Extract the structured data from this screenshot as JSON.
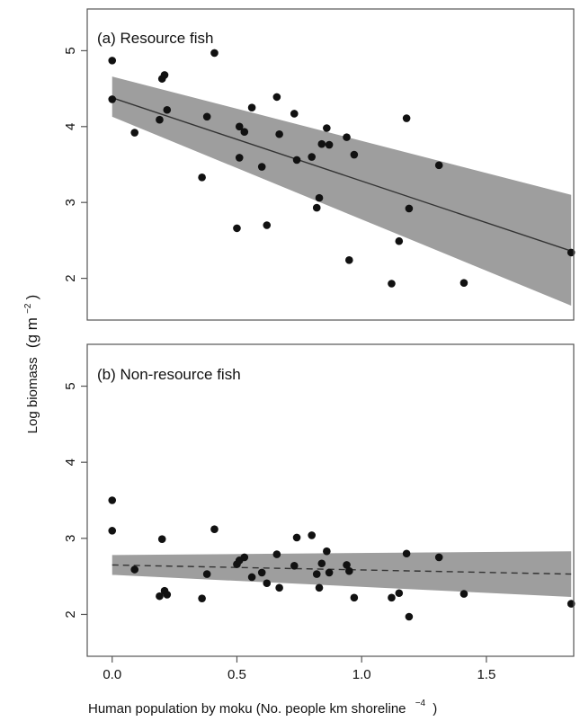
{
  "chart_data": [
    {
      "type": "scatter",
      "title": "(a) Resource fish",
      "ylim": [
        1.45,
        5.55
      ],
      "xlim": [
        -0.1,
        1.85
      ],
      "yticks": [
        "2",
        "3",
        "4",
        "5"
      ],
      "ytick_values": [
        2,
        3,
        4,
        5
      ],
      "grid": false,
      "points": [
        [
          0.0,
          4.87
        ],
        [
          0.0,
          4.36
        ],
        [
          0.09,
          3.92
        ],
        [
          0.19,
          4.09
        ],
        [
          0.2,
          4.63
        ],
        [
          0.21,
          4.68
        ],
        [
          0.22,
          4.22
        ],
        [
          0.36,
          3.33
        ],
        [
          0.38,
          4.13
        ],
        [
          0.41,
          4.97
        ],
        [
          0.5,
          2.66
        ],
        [
          0.51,
          3.59
        ],
        [
          0.51,
          4.0
        ],
        [
          0.53,
          3.93
        ],
        [
          0.56,
          4.25
        ],
        [
          0.6,
          3.47
        ],
        [
          0.62,
          2.7
        ],
        [
          0.66,
          4.39
        ],
        [
          0.67,
          3.9
        ],
        [
          0.73,
          4.17
        ],
        [
          0.74,
          3.56
        ],
        [
          0.8,
          3.6
        ],
        [
          0.82,
          2.93
        ],
        [
          0.83,
          3.06
        ],
        [
          0.84,
          3.77
        ],
        [
          0.86,
          3.98
        ],
        [
          0.87,
          3.76
        ],
        [
          0.94,
          3.86
        ],
        [
          0.95,
          2.24
        ],
        [
          0.97,
          3.63
        ],
        [
          1.12,
          1.93
        ],
        [
          1.15,
          2.49
        ],
        [
          1.18,
          4.11
        ],
        [
          1.19,
          2.92
        ],
        [
          1.31,
          3.49
        ],
        [
          1.41,
          1.94
        ],
        [
          1.84,
          2.34
        ]
      ],
      "fit": {
        "x": [
          0.0,
          1.84
        ],
        "y": [
          4.38,
          2.36
        ],
        "style": "solid"
      },
      "band": {
        "x": [
          0.0,
          1.84
        ],
        "upper": [
          4.66,
          3.1
        ],
        "lower": [
          4.13,
          1.64
        ]
      }
    },
    {
      "type": "scatter",
      "title": "(b) Non-resource fish",
      "ylim": [
        1.45,
        5.55
      ],
      "xlim": [
        -0.1,
        1.85
      ],
      "yticks": [
        "2",
        "3",
        "4",
        "5"
      ],
      "ytick_values": [
        2,
        3,
        4,
        5
      ],
      "xticks": [
        "0.0",
        "0.5",
        "1.0",
        "1.5"
      ],
      "xtick_values": [
        0.0,
        0.5,
        1.0,
        1.5
      ],
      "grid": false,
      "points": [
        [
          0.0,
          3.5
        ],
        [
          0.0,
          3.1
        ],
        [
          0.09,
          2.59
        ],
        [
          0.19,
          2.24
        ],
        [
          0.2,
          2.99
        ],
        [
          0.21,
          2.31
        ],
        [
          0.22,
          2.26
        ],
        [
          0.36,
          2.21
        ],
        [
          0.38,
          2.53
        ],
        [
          0.41,
          3.12
        ],
        [
          0.5,
          2.66
        ],
        [
          0.51,
          2.71
        ],
        [
          0.53,
          2.75
        ],
        [
          0.56,
          2.49
        ],
        [
          0.6,
          2.55
        ],
        [
          0.62,
          2.41
        ],
        [
          0.66,
          2.79
        ],
        [
          0.67,
          2.35
        ],
        [
          0.73,
          2.64
        ],
        [
          0.74,
          3.01
        ],
        [
          0.8,
          3.04
        ],
        [
          0.82,
          2.53
        ],
        [
          0.83,
          2.35
        ],
        [
          0.84,
          2.67
        ],
        [
          0.86,
          2.83
        ],
        [
          0.87,
          2.55
        ],
        [
          0.94,
          2.65
        ],
        [
          0.95,
          2.57
        ],
        [
          0.97,
          2.22
        ],
        [
          1.12,
          2.22
        ],
        [
          1.15,
          2.28
        ],
        [
          1.18,
          2.8
        ],
        [
          1.19,
          1.97
        ],
        [
          1.31,
          2.75
        ],
        [
          1.41,
          2.27
        ],
        [
          1.84,
          2.14
        ]
      ],
      "fit": {
        "x": [
          0.0,
          1.84
        ],
        "y": [
          2.65,
          2.53
        ],
        "style": "dashed"
      },
      "band": {
        "x": [
          0.0,
          1.84
        ],
        "upper": [
          2.78,
          2.83
        ],
        "lower": [
          2.52,
          2.23
        ]
      }
    }
  ],
  "ylabel_main": "Log biomass",
  "ylabel_unit_base": "(g m",
  "ylabel_unit_exp": "−2",
  "ylabel_unit_close": ")",
  "xlabel_main": "Human population by moku (No. people km shoreline",
  "xlabel_exp": "−4",
  "xlabel_close": ")",
  "colors": {
    "band": "#9e9e9e",
    "points": "#111111",
    "line": "#333333",
    "frame": "#555555"
  }
}
